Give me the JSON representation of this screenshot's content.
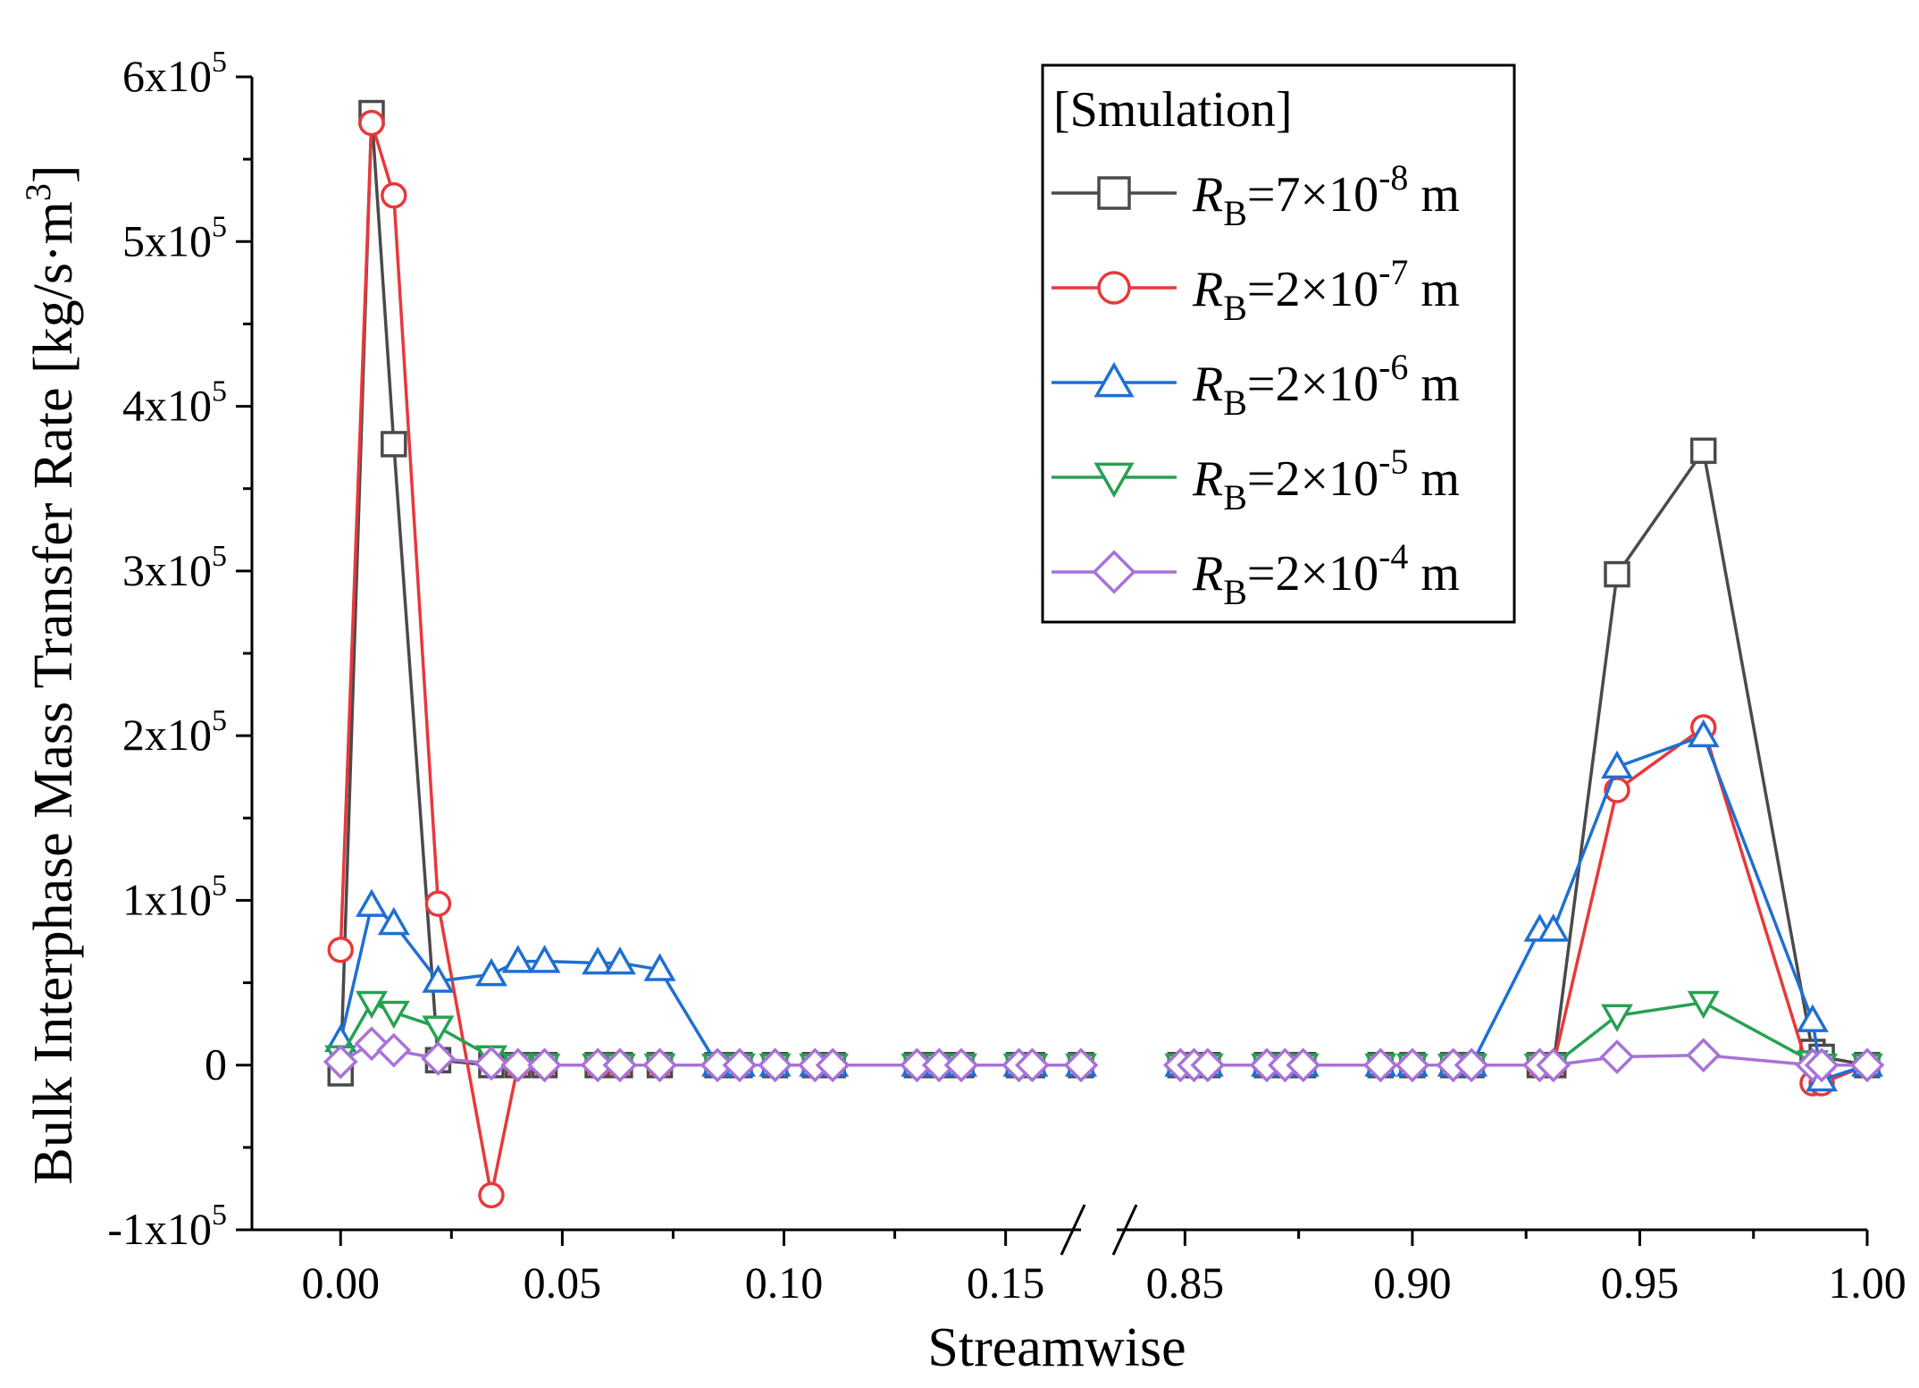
{
  "chart_data": {
    "type": "line",
    "title": "",
    "xlabel": "Streamwise",
    "ylabel": "Bulk Interphase Mass Transfer Rate [kg/s·m³]",
    "ylabel_parts": {
      "main": "Bulk Interphase Mass Transfer Rate [kg/s·m",
      "sup": "3",
      "close": "]"
    },
    "ylim": [
      -100000,
      600000
    ],
    "y_ticks": [
      {
        "value": 600000,
        "mant": "6x10",
        "exp": "5"
      },
      {
        "value": 500000,
        "mant": "5x10",
        "exp": "5"
      },
      {
        "value": 400000,
        "mant": "4x10",
        "exp": "5"
      },
      {
        "value": 300000,
        "mant": "3x10",
        "exp": "5"
      },
      {
        "value": 200000,
        "mant": "2x10",
        "exp": "5"
      },
      {
        "value": 100000,
        "mant": "1x10",
        "exp": "5"
      },
      {
        "value": 0,
        "mant": "0",
        "exp": ""
      },
      {
        "value": -100000,
        "mant": "-1x10",
        "exp": "5"
      }
    ],
    "x_break": {
      "left_range": [
        -0.02,
        0.167
      ],
      "right_range": [
        0.835,
        1.0
      ]
    },
    "x_ticks": [
      {
        "value": 0.0,
        "label": "0.00"
      },
      {
        "value": 0.05,
        "label": "0.05"
      },
      {
        "value": 0.1,
        "label": "0.10"
      },
      {
        "value": 0.15,
        "label": "0.15"
      },
      {
        "value": 0.85,
        "label": "0.85"
      },
      {
        "value": 0.9,
        "label": "0.90"
      },
      {
        "value": 0.95,
        "label": "0.95"
      },
      {
        "value": 1.0,
        "label": "1.00"
      }
    ],
    "x": [
      0.0,
      0.007,
      0.012,
      0.022,
      0.034,
      0.04,
      0.046,
      0.058,
      0.063,
      0.072,
      0.085,
      0.09,
      0.098,
      0.107,
      0.111,
      0.13,
      0.135,
      0.14,
      0.153,
      0.156,
      0.167,
      0.849,
      0.852,
      0.855,
      0.868,
      0.872,
      0.876,
      0.893,
      0.9,
      0.909,
      0.913,
      0.928,
      0.931,
      0.945,
      0.964,
      0.988,
      0.99,
      1.0
    ],
    "legend": {
      "title": "[Smulation]",
      "position": "top-right"
    },
    "series": [
      {
        "name": "RB=7×10-8 m",
        "label_sub": "B",
        "label_eq": "=7×10",
        "label_exp": "-8",
        "label_unit": " m",
        "color": "#4a4a4a",
        "marker": "square",
        "values": [
          -5000,
          578000,
          377000,
          3000,
          0,
          0,
          0,
          0,
          0,
          0,
          0,
          0,
          0,
          0,
          0,
          0,
          0,
          0,
          0,
          0,
          0,
          0,
          0,
          0,
          0,
          0,
          0,
          0,
          0,
          0,
          0,
          0,
          0,
          298000,
          373000,
          8000,
          5000,
          0
        ]
      },
      {
        "name": "RB=2×10-7 m",
        "label_sub": "B",
        "label_eq": "=2×10",
        "label_exp": "-7",
        "label_unit": " m",
        "color": "#e8383a",
        "marker": "circle",
        "values": [
          70000,
          572000,
          528000,
          98000,
          -79000,
          0,
          0,
          0,
          0,
          0,
          0,
          0,
          0,
          0,
          0,
          0,
          0,
          0,
          0,
          0,
          0,
          0,
          0,
          0,
          0,
          0,
          0,
          0,
          0,
          0,
          0,
          0,
          0,
          167000,
          205000,
          -11000,
          -11000,
          0
        ]
      },
      {
        "name": "RB=2×10-6 m",
        "label_sub": "B",
        "label_eq": "=2×10",
        "label_exp": "-6",
        "label_unit": " m",
        "color": "#1f6fd1",
        "marker": "triangle-up",
        "values": [
          15000,
          97000,
          86000,
          51000,
          55000,
          63000,
          63000,
          62000,
          62000,
          58000,
          0,
          0,
          0,
          0,
          0,
          0,
          0,
          0,
          0,
          0,
          0,
          0,
          0,
          0,
          0,
          0,
          0,
          0,
          0,
          0,
          0,
          82000,
          82000,
          181000,
          200000,
          27000,
          -9000,
          0
        ]
      },
      {
        "name": "RB=2×10-5 m",
        "label_sub": "B",
        "label_eq": "=2×10",
        "label_exp": "-5",
        "label_unit": " m",
        "color": "#27a152",
        "marker": "triangle-down",
        "values": [
          5000,
          38000,
          32000,
          23000,
          5000,
          0,
          0,
          0,
          0,
          0,
          0,
          0,
          0,
          0,
          0,
          0,
          0,
          0,
          0,
          0,
          0,
          0,
          0,
          0,
          0,
          0,
          0,
          0,
          0,
          0,
          0,
          0,
          0,
          30000,
          38000,
          2000,
          0,
          0
        ]
      },
      {
        "name": "RB=2×10-4 m",
        "label_sub": "B",
        "label_eq": "=2×10",
        "label_exp": "-4",
        "label_unit": " m",
        "color": "#a872d8",
        "marker": "diamond",
        "values": [
          2000,
          13000,
          9000,
          4000,
          1000,
          0,
          0,
          0,
          0,
          0,
          0,
          0,
          0,
          0,
          0,
          0,
          0,
          0,
          0,
          0,
          0,
          0,
          0,
          0,
          0,
          0,
          0,
          0,
          0,
          0,
          0,
          0,
          0,
          5000,
          6000,
          0,
          0,
          0
        ]
      }
    ]
  }
}
